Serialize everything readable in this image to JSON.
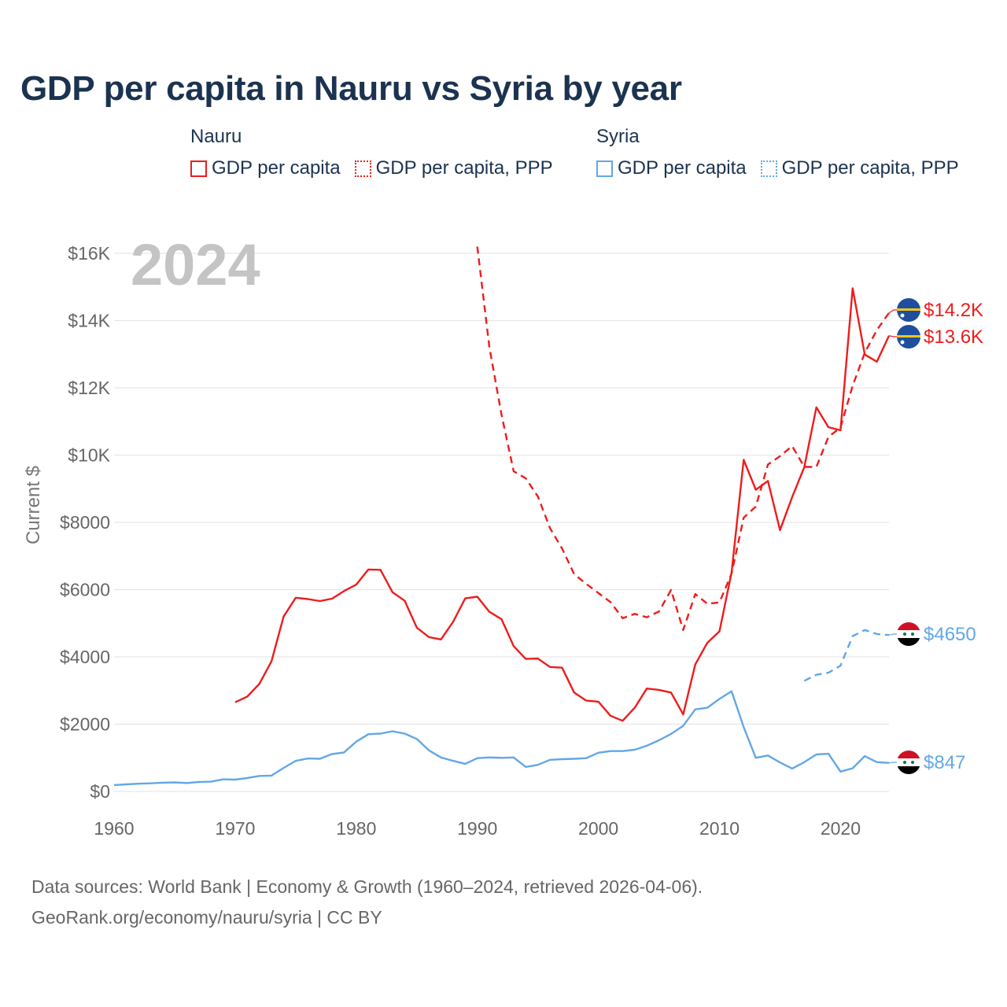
{
  "title": "GDP per capita in Nauru vs Syria by year",
  "legend": {
    "groups": [
      {
        "name": "Nauru",
        "items": [
          {
            "label": "GDP per capita"
          },
          {
            "label": "GDP per capita, PPP"
          }
        ]
      },
      {
        "name": "Syria",
        "items": [
          {
            "label": "GDP per capita"
          },
          {
            "label": "GDP per capita, PPP"
          }
        ]
      }
    ]
  },
  "colors": {
    "nauru": "#ee1c1c",
    "syria": "#63a7e6"
  },
  "footer": {
    "line1": "Data sources: World Bank | Economy & Growth (1960–2024, retrieved 2026-04-06).",
    "line2": "GeoRank.org/economy/nauru/syria | CC BY"
  },
  "chart_data": {
    "type": "line",
    "title": "GDP per capita in Nauru vs Syria by year",
    "year_watermark": "2024",
    "ylabel": "Current $",
    "xlabel": "",
    "xlim": [
      1960,
      2024
    ],
    "ylim": [
      0,
      16000
    ],
    "x_ticks": [
      1960,
      1970,
      1980,
      1990,
      2000,
      2010,
      2020
    ],
    "x_tick_labels": [
      "1960",
      "1970",
      "1980",
      "1990",
      "2000",
      "2010",
      "2020"
    ],
    "y_ticks": [
      0,
      2000,
      4000,
      6000,
      8000,
      10000,
      12000,
      14000,
      16000
    ],
    "y_tick_labels": [
      "$0",
      "$2000",
      "$4000",
      "$6000",
      "$8000",
      "$10K",
      "$12K",
      "$14K",
      "$16K"
    ],
    "grid": "horizontal",
    "series": [
      {
        "name": "Nauru GDP per capita",
        "country": "Nauru",
        "dashed": false,
        "end_label": "$13.6K",
        "x": [
          1970,
          1971,
          1972,
          1973,
          1974,
          1975,
          1976,
          1977,
          1978,
          1979,
          1980,
          1981,
          1982,
          1983,
          1984,
          1985,
          1986,
          1987,
          1988,
          1989,
          1990,
          1991,
          1992,
          1993,
          1994,
          1995,
          1996,
          1997,
          1998,
          1999,
          2000,
          2001,
          2002,
          2003,
          2004,
          2005,
          2006,
          2007,
          2008,
          2009,
          2010,
          2011,
          2012,
          2013,
          2014,
          2015,
          2016,
          2017,
          2018,
          2019,
          2020,
          2021,
          2022,
          2023,
          2024
        ],
        "values": [
          2650,
          2820,
          3200,
          3870,
          5200,
          5760,
          5720,
          5660,
          5730,
          5960,
          6150,
          6600,
          6590,
          5920,
          5670,
          4870,
          4590,
          4520,
          5040,
          5740,
          5790,
          5340,
          5120,
          4320,
          3940,
          3950,
          3700,
          3680,
          2940,
          2700,
          2670,
          2250,
          2100,
          2490,
          3060,
          3020,
          2940,
          2290,
          3780,
          4420,
          4760,
          6510,
          9860,
          8970,
          9230,
          7770,
          8750,
          9640,
          11420,
          10830,
          10740,
          14960,
          12990,
          12780,
          13550
        ]
      },
      {
        "name": "Nauru GDP per capita, PPP",
        "country": "Nauru",
        "dashed": true,
        "end_label": "$14.2K",
        "x": [
          1990,
          1991,
          1992,
          1993,
          1994,
          1995,
          1996,
          1997,
          1998,
          1999,
          2000,
          2001,
          2002,
          2003,
          2004,
          2005,
          2006,
          2007,
          2008,
          2009,
          2010,
          2011,
          2012,
          2013,
          2014,
          2015,
          2016,
          2017,
          2018,
          2019,
          2020,
          2021,
          2022,
          2023,
          2024
        ],
        "values": [
          16200,
          13200,
          11200,
          9520,
          9310,
          8770,
          7830,
          7220,
          6460,
          6170,
          5900,
          5630,
          5150,
          5280,
          5180,
          5350,
          5990,
          4800,
          5870,
          5580,
          5620,
          6480,
          8140,
          8470,
          9720,
          9970,
          10270,
          9650,
          9650,
          10540,
          10820,
          12060,
          13040,
          13720,
          14230
        ]
      },
      {
        "name": "Syria GDP per capita",
        "country": "Syria",
        "dashed": false,
        "end_label": "$847",
        "x": [
          1960,
          1961,
          1962,
          1963,
          1964,
          1965,
          1966,
          1967,
          1968,
          1969,
          1970,
          1971,
          1972,
          1973,
          1974,
          1975,
          1976,
          1977,
          1978,
          1979,
          1980,
          1981,
          1982,
          1983,
          1984,
          1985,
          1986,
          1987,
          1988,
          1989,
          1990,
          1991,
          1992,
          1993,
          1994,
          1995,
          1996,
          1997,
          1998,
          1999,
          2000,
          2001,
          2002,
          2003,
          2004,
          2005,
          2006,
          2007,
          2008,
          2009,
          2010,
          2011,
          2012,
          2013,
          2014,
          2015,
          2016,
          2017,
          2018,
          2019,
          2020,
          2021,
          2022,
          2023,
          2024
        ],
        "values": [
          190,
          210,
          230,
          240,
          260,
          270,
          250,
          280,
          290,
          360,
          350,
          400,
          460,
          470,
          700,
          910,
          980,
          970,
          1110,
          1160,
          1480,
          1700,
          1720,
          1790,
          1720,
          1560,
          1220,
          1010,
          910,
          820,
          990,
          1010,
          1000,
          1010,
          730,
          790,
          940,
          960,
          970,
          990,
          1150,
          1200,
          1200,
          1240,
          1360,
          1520,
          1710,
          1950,
          2440,
          2490,
          2750,
          2980,
          1910,
          1000,
          1070,
          860,
          680,
          870,
          1100,
          1120,
          590,
          690,
          1050,
          870,
          850
        ]
      },
      {
        "name": "Syria GDP per capita, PPP",
        "country": "Syria",
        "dashed": true,
        "end_label": "$4650",
        "x": [
          2017,
          2018,
          2019,
          2020,
          2021,
          2022,
          2023,
          2024
        ],
        "values": [
          3290,
          3470,
          3530,
          3740,
          4620,
          4800,
          4680,
          4650
        ]
      }
    ]
  }
}
